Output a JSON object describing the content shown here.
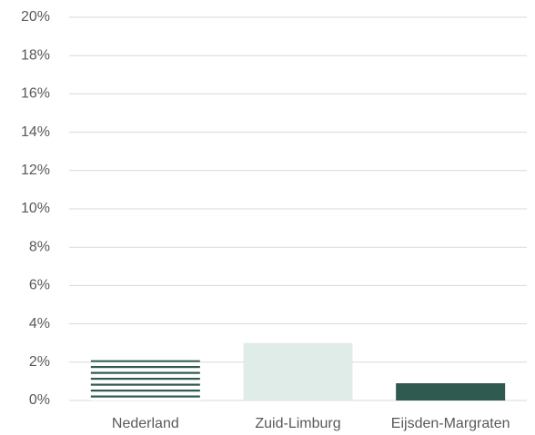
{
  "chart_data": {
    "type": "bar",
    "categories": [
      "Nederland",
      "Zuid-Limburg",
      "Eijsden-Margraten"
    ],
    "values": [
      2.1,
      3.0,
      0.9
    ],
    "colors": [
      "#2f5a50",
      "#dfece8",
      "#2f5a50"
    ],
    "patterns": [
      "horizontal-stripes",
      "solid",
      "solid"
    ],
    "ylim": [
      0,
      20
    ],
    "yticks": [
      {
        "value": 0,
        "label": "0%"
      },
      {
        "value": 2,
        "label": "2%"
      },
      {
        "value": 4,
        "label": "4%"
      },
      {
        "value": 6,
        "label": "6%"
      },
      {
        "value": 8,
        "label": "8%"
      },
      {
        "value": 10,
        "label": "10%"
      },
      {
        "value": 12,
        "label": "12%"
      },
      {
        "value": 14,
        "label": "14%"
      },
      {
        "value": 16,
        "label": "16%"
      },
      {
        "value": 18,
        "label": "18%"
      },
      {
        "value": 20,
        "label": "20%"
      }
    ],
    "grid": true
  }
}
